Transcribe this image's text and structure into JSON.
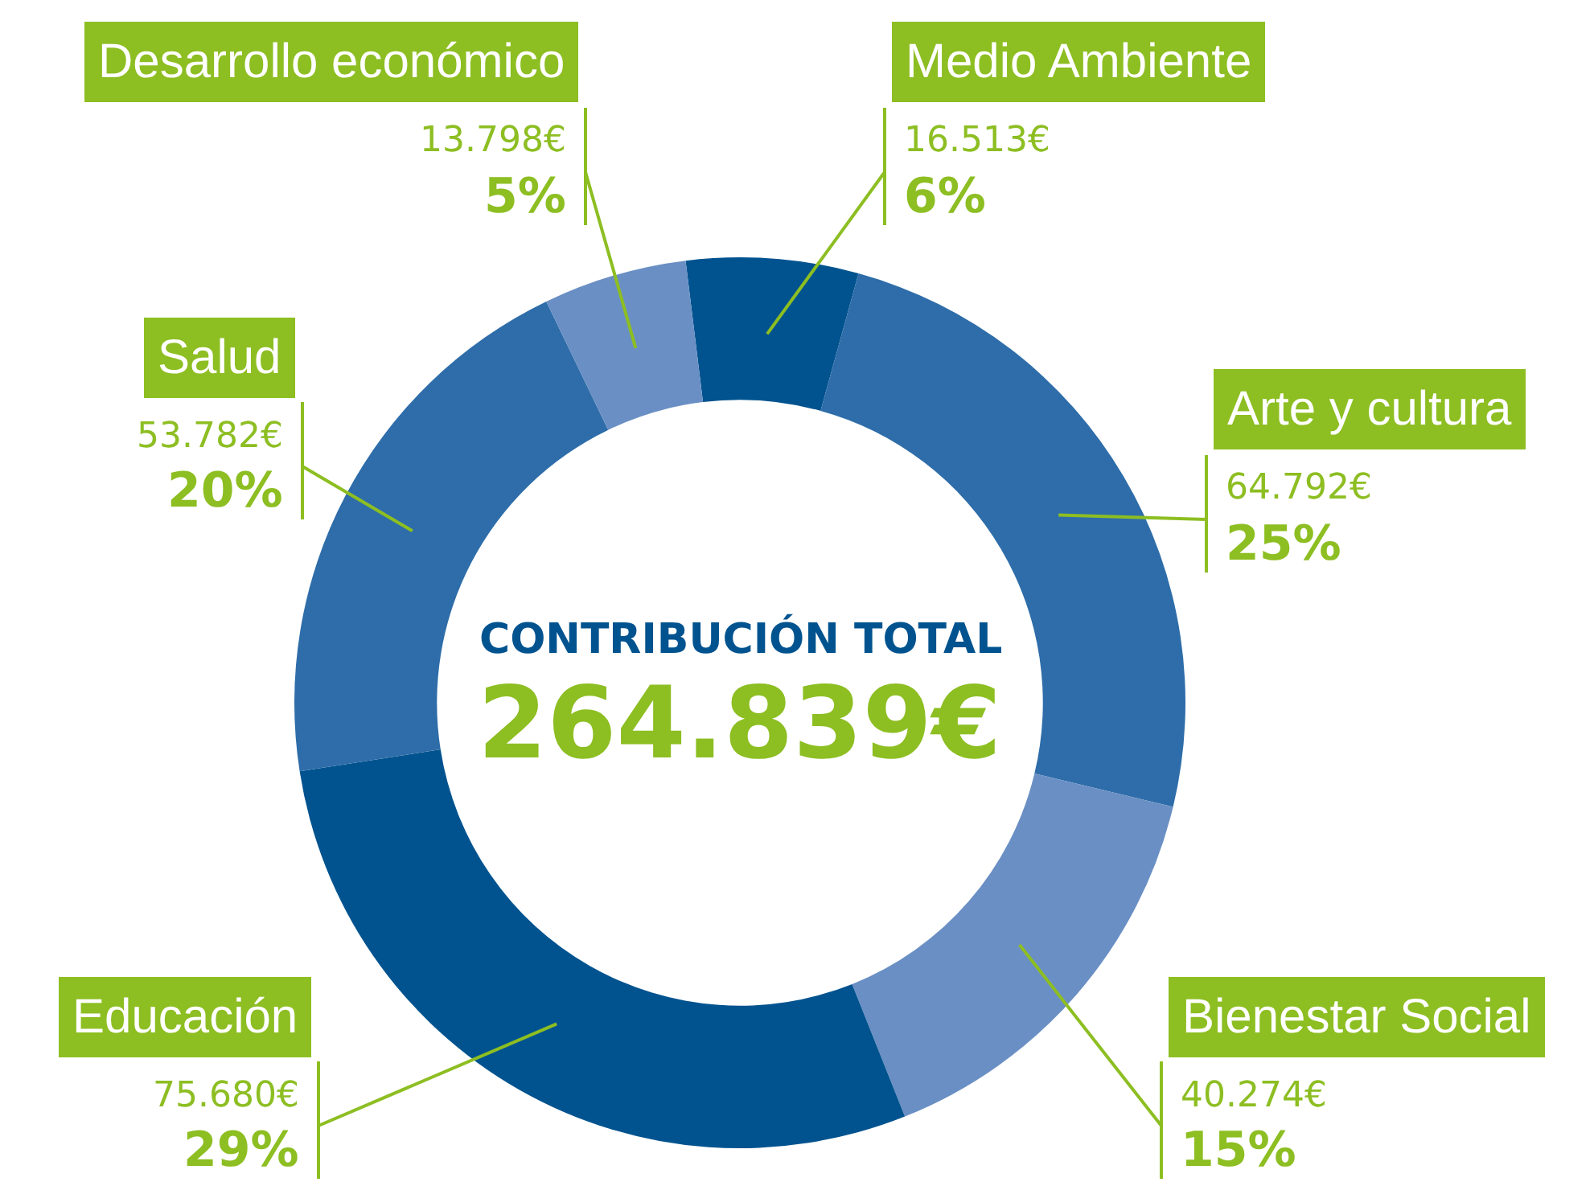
{
  "chart_data": {
    "type": "donut",
    "categories": [
      "Medio Ambiente",
      "Arte y cultura",
      "Bienestar Social",
      "Educación",
      "Salud",
      "Desarrollo económico"
    ],
    "values": [
      16513,
      64792,
      40274,
      75680,
      53782,
      13798
    ],
    "colors": [
      "#00538f",
      "#2e6da9",
      "#6a8fc4",
      "#00538f",
      "#2e6da9",
      "#6a8fc4"
    ],
    "value_labels": [
      "16.513€\n6%",
      "64.792€\n25%",
      "40.274€\n15%",
      "75.680€\n29%",
      "53.782€\n20%",
      "13.798€\n5%"
    ],
    "annotations": [
      "CONTRIBUCIÓN TOTAL",
      "264.839€"
    ],
    "legend": false
  }
}
